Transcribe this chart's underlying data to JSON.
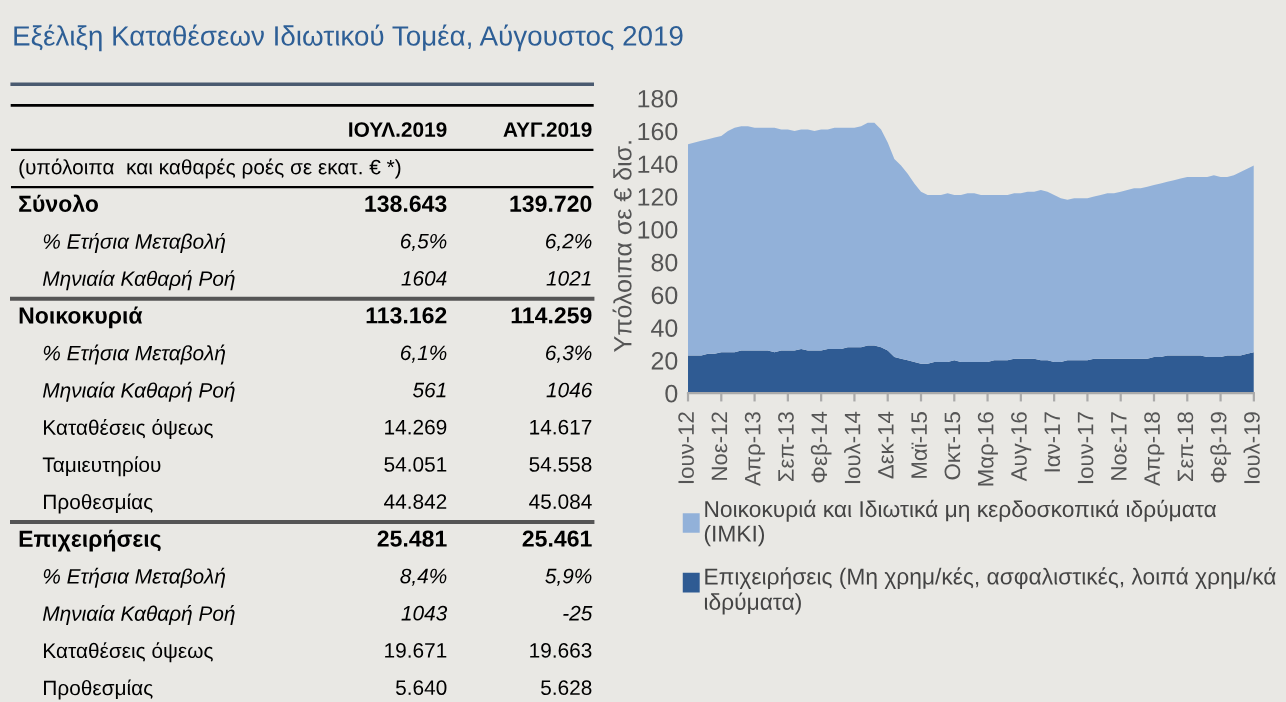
{
  "chart_data": [
    {
      "type": "other",
      "title": "Εξέλιξη Καταθέσεων Ιδιωτικού Τομέα, Αύγουστος 2019",
      "annotations": [
        "ΙΟΥΛ.2019",
        "ΑΥΓ.2019",
        "(υπόλοιπα  και καθαρές ροές σε εκατ. € *)",
        "Σύνολο",
        "138.643",
        "139.720",
        "% Ετήσια Μεταβολή",
        "6,5%",
        "6,2%",
        "Μηνιαία Καθαρή Ροή",
        "1604",
        "1021",
        "Νοικοκυριά",
        "113.162",
        "114.259",
        "% Ετήσια Μεταβολή",
        "6,1%",
        "6,3%",
        "Μηνιαία Καθαρή Ροή",
        "561",
        "1046",
        "Καταθέσεις όψεως",
        "14.269",
        "14.617",
        "Ταμιευτηρίου",
        "54.051",
        "54.558",
        "Προθεσμίας",
        "44.842",
        "45.084",
        "Επιχειρήσεις",
        "25.481",
        "25.461",
        "% Ετήσια Μεταβολή",
        "8,4%",
        "5,9%",
        "Μηνιαία Καθαρή Ροή",
        "1043",
        "-25",
        "Καταθέσεις όψεως",
        "19.671",
        "19.663",
        "Προθεσμίας",
        "5.640",
        "5.628"
      ]
    },
    {
      "type": "area",
      "stacked": true,
      "ylabel": "Υπόλοιπα σε € δισ.",
      "ylim": [
        0,
        180
      ],
      "yticks": [
        0,
        20,
        40,
        60,
        80,
        100,
        120,
        140,
        160,
        180
      ],
      "legend": "bottom",
      "grid": false,
      "categories": [
        "Ιουν-12",
        null,
        null,
        null,
        null,
        "Νοε-12",
        null,
        null,
        null,
        null,
        "Απρ-13",
        null,
        null,
        null,
        null,
        "Σεπ-13",
        null,
        null,
        null,
        null,
        "Φεβ-14",
        null,
        null,
        null,
        null,
        "Ιουλ-14",
        null,
        null,
        null,
        null,
        "Δεκ-14",
        null,
        null,
        null,
        null,
        "Μαϊ-15",
        null,
        null,
        null,
        null,
        "Οκτ-15",
        null,
        null,
        null,
        null,
        "Μαρ-16",
        null,
        null,
        null,
        null,
        "Αυγ-16",
        null,
        null,
        null,
        null,
        "Ιαν-17",
        null,
        null,
        null,
        null,
        "Ιουν-17",
        null,
        null,
        null,
        null,
        "Νοε-17",
        null,
        null,
        null,
        null,
        "Απρ-18",
        null,
        null,
        null,
        null,
        "Σεπ-18",
        null,
        null,
        null,
        null,
        "Φεβ-19",
        null,
        null,
        null,
        null,
        "Ιουλ-19"
      ],
      "series": [
        {
          "name": "Επιχειρήσεις (Μη χρημ/κές, ασφαλιστικές, λοιπά χρημ/κά ιδρύματα)",
          "color": "#2f5b93",
          "values": [
            23,
            23,
            23,
            24,
            24,
            25,
            25,
            25,
            26,
            26,
            26,
            26,
            26,
            25,
            26,
            26,
            26,
            27,
            26,
            26,
            26,
            27,
            27,
            27,
            28,
            28,
            28,
            29,
            29,
            28,
            26,
            22,
            21,
            20,
            19,
            18,
            18,
            19,
            19,
            19,
            20,
            19,
            19,
            19,
            19,
            19,
            20,
            20,
            20,
            21,
            21,
            21,
            21,
            20,
            20,
            19,
            19,
            20,
            20,
            20,
            20,
            21,
            21,
            21,
            21,
            21,
            21,
            21,
            21,
            21,
            22,
            22,
            23,
            23,
            23,
            23,
            23,
            23,
            22,
            22,
            22,
            23,
            23,
            23,
            24,
            25
          ]
        },
        {
          "name": "Νοικοκυριά και Ιδιωτικά μη κερδοσκοπικά ιδρύματα (ΙΜΚΙ)",
          "color": "#92b1d9",
          "values": [
            129,
            130,
            131,
            131,
            132,
            132,
            135,
            137,
            137,
            137,
            136,
            136,
            136,
            137,
            135,
            135,
            134,
            134,
            135,
            134,
            135,
            134,
            135,
            135,
            134,
            134,
            135,
            136,
            136,
            133,
            127,
            121,
            118,
            114,
            109,
            105,
            103,
            102,
            102,
            103,
            101,
            102,
            103,
            103,
            102,
            102,
            101,
            101,
            101,
            101,
            101,
            102,
            102,
            104,
            103,
            102,
            100,
            98,
            99,
            99,
            99,
            99,
            100,
            101,
            101,
            102,
            103,
            104,
            104,
            105,
            105,
            106,
            106,
            107,
            108,
            109,
            109,
            109,
            110,
            111,
            110,
            109,
            110,
            112,
            113,
            114
          ]
        }
      ]
    }
  ]
}
